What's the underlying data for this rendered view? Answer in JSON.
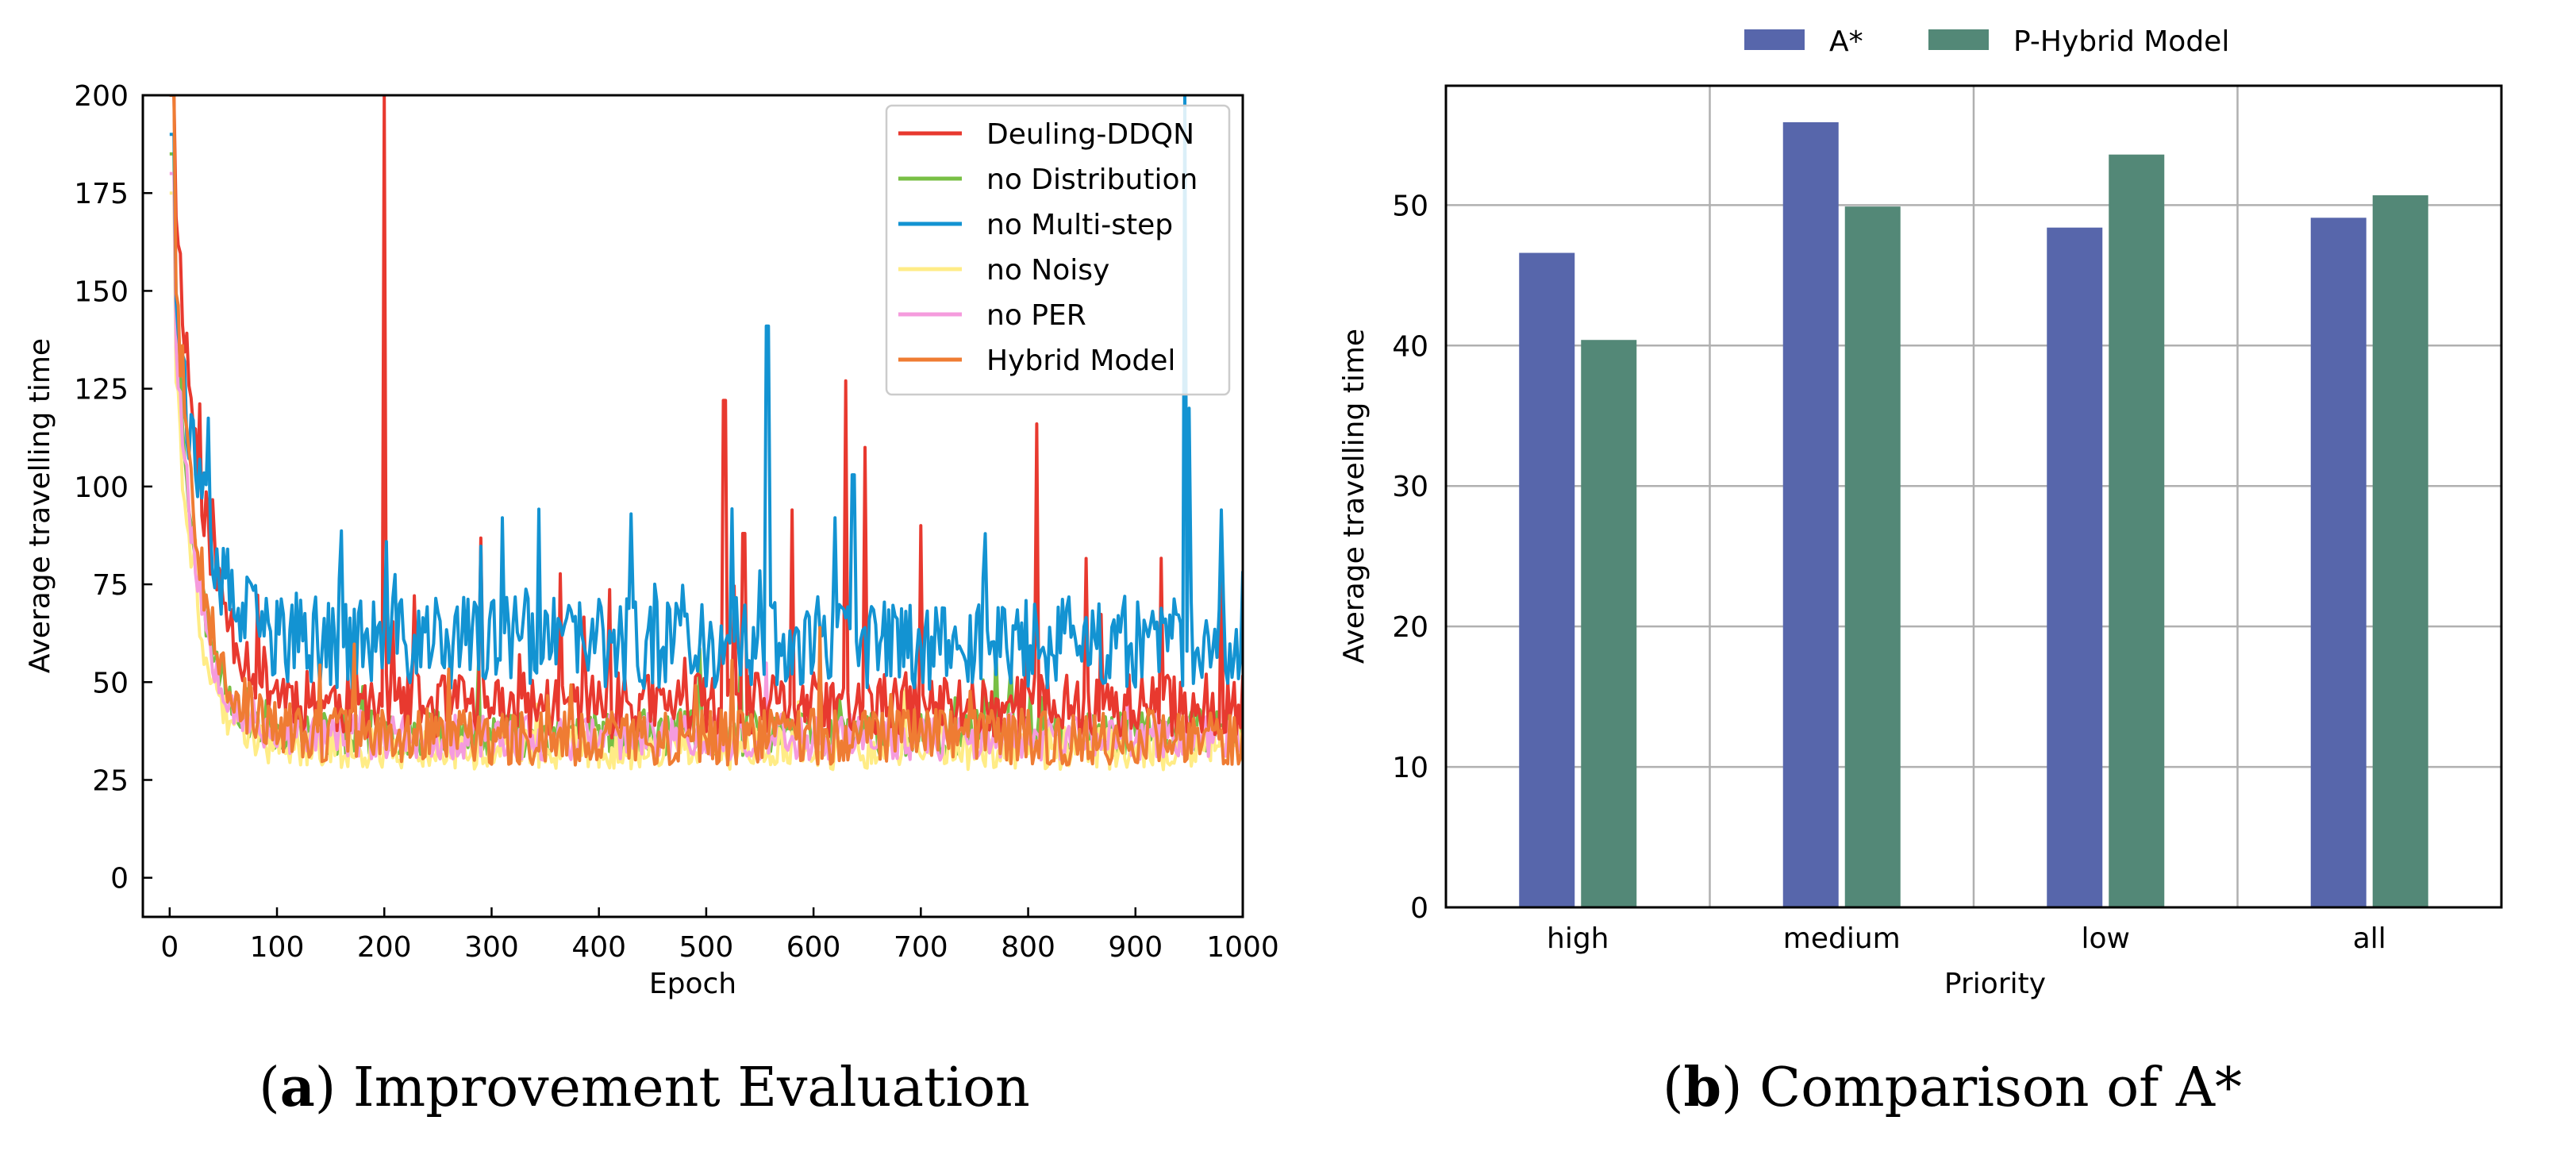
{
  "captions": {
    "a": {
      "label": "a",
      "text": " Improvement Evaluation"
    },
    "b": {
      "label": "b",
      "text": " Comparison of A*"
    }
  },
  "chart_data": [
    {
      "type": "line",
      "xlabel": "Epoch",
      "ylabel": "Average travelling time",
      "xlim": [
        -25,
        1000
      ],
      "ylim": [
        -10,
        200
      ],
      "xticks": [
        0,
        100,
        200,
        300,
        400,
        500,
        600,
        700,
        800,
        900,
        1000
      ],
      "yticks": [
        0,
        25,
        50,
        75,
        100,
        125,
        150,
        175,
        200
      ],
      "legend_position": "top-right",
      "grid": false,
      "series": [
        {
          "name": "Deuling-DDQN",
          "color": "#e8392f",
          "start": 200,
          "base": 44,
          "noise": 7,
          "spikeProb": 0.045,
          "spikeMax": 45,
          "decayAmp": 160,
          "tau": 28,
          "seed": 11,
          "peaks": [
            [
              200,
              200
            ],
            [
              517,
              122
            ],
            [
              630,
              127
            ],
            [
              808,
              116
            ],
            [
              648,
              110
            ],
            [
              580,
              94
            ],
            [
              700,
              90
            ],
            [
              535,
              88
            ]
          ]
        },
        {
          "name": "no Distribution",
          "color": "#78bf45",
          "start": 185,
          "base": 37,
          "noise": 5,
          "spikeProb": 0.02,
          "spikeMax": 20,
          "decayAmp": 140,
          "tau": 22,
          "seed": 23,
          "peaks": []
        },
        {
          "name": "no Multi-step",
          "color": "#1393d2",
          "start": 190,
          "base": 60,
          "noise": 10,
          "spikeProb": 0.06,
          "spikeMax": 30,
          "decayAmp": 120,
          "tau": 24,
          "seed": 37,
          "peaks": [
            [
              557,
              141
            ],
            [
              637,
              103
            ],
            [
              946,
              200
            ],
            [
              950,
              120
            ],
            [
              980,
              94
            ],
            [
              310,
              92
            ],
            [
              430,
              93
            ],
            [
              620,
              92
            ]
          ]
        },
        {
          "name": "no Noisy",
          "color": "#ffec86",
          "start": 175,
          "base": 33,
          "noise": 4.5,
          "spikeProb": 0.02,
          "spikeMax": 15,
          "decayAmp": 130,
          "tau": 20,
          "seed": 41,
          "peaks": []
        },
        {
          "name": "no PER",
          "color": "#f59bdd",
          "start": 180,
          "base": 36,
          "noise": 5,
          "spikeProb": 0.025,
          "spikeMax": 15,
          "decayAmp": 135,
          "tau": 22,
          "seed": 53,
          "peaks": []
        },
        {
          "name": "Hybrid Model",
          "color": "#ef7c33",
          "start": 200,
          "base": 36,
          "noise": 6,
          "spikeProb": 0.035,
          "spikeMax": 22,
          "decayAmp": 150,
          "tau": 24,
          "seed": 67,
          "peaks": []
        }
      ]
    },
    {
      "type": "bar",
      "xlabel": "Priority",
      "ylabel": "Average travelling time",
      "categories": [
        "high",
        "medium",
        "low",
        "all"
      ],
      "ylim": [
        0,
        58.5
      ],
      "yticks": [
        0,
        10,
        20,
        30,
        40,
        50
      ],
      "grid": true,
      "legend_position": "top-center",
      "series": [
        {
          "name": "A*",
          "color": "#5766ab",
          "values": [
            46.6,
            55.9,
            48.4,
            49.1
          ]
        },
        {
          "name": "P-Hybrid Model",
          "color": "#538877",
          "values": [
            40.4,
            49.9,
            53.6,
            50.7
          ]
        }
      ]
    }
  ]
}
